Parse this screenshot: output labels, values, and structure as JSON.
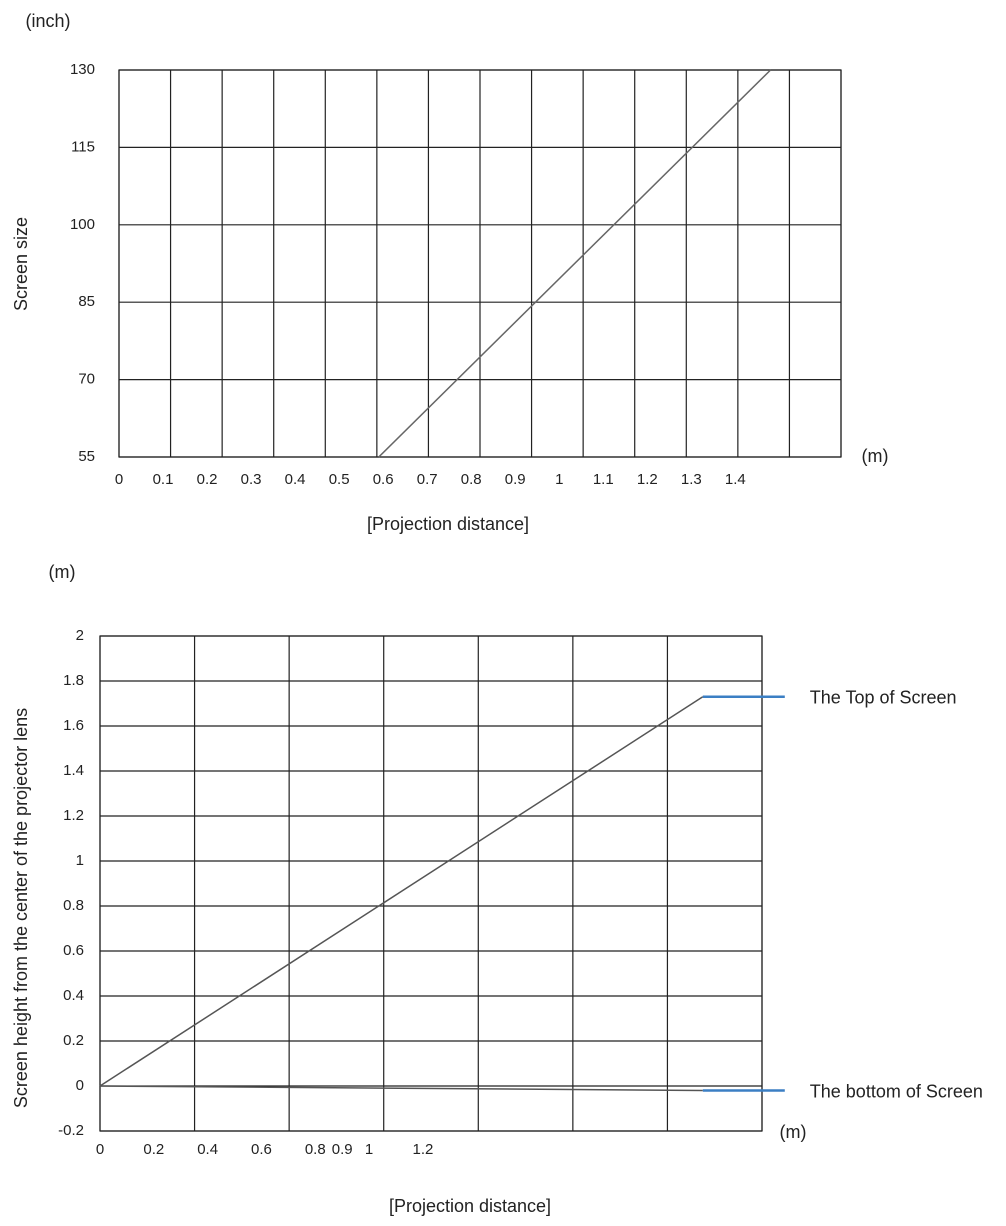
{
  "chart_data": [
    {
      "type": "line",
      "y_unit": "(inch)",
      "y_label": "Screen size",
      "x_unit": "(m)",
      "x_label": "[Projection distance]",
      "x": [
        0.59,
        1.48
      ],
      "values": [
        55,
        130
      ],
      "color": "#666666",
      "xlim": [
        0,
        1.64
      ],
      "xticks": [
        0,
        0.1,
        0.2,
        0.3,
        0.4,
        0.5,
        0.6,
        0.7,
        0.8,
        0.9,
        1,
        1.1,
        1.2,
        1.3,
        1.4
      ],
      "ylim": [
        55,
        130
      ],
      "yticks": [
        55,
        70,
        85,
        100,
        115,
        130
      ],
      "grid": true
    },
    {
      "type": "line",
      "y_unit": "(m)",
      "y_label": "Screen height from the center of the projector lens",
      "x_unit": "(m)",
      "x_label": "[Projection distance]",
      "x": [
        0,
        2.24
      ],
      "series": [
        {
          "name": "The Top of Screen",
          "color": "#555555",
          "values": [
            0,
            1.73
          ]
        },
        {
          "name": "The bottom of Screen",
          "color": "#555555",
          "values": [
            0,
            -0.02
          ]
        }
      ],
      "xlim": [
        0,
        2.46
      ],
      "xticks": [
        0,
        0.2,
        0.4,
        0.6,
        0.8,
        0.9,
        1,
        1.2
      ],
      "ylim": [
        -0.2,
        2
      ],
      "yticks": [
        -0.2,
        0,
        0.2,
        0.4,
        0.6,
        0.8,
        1,
        1.2,
        1.4,
        1.6,
        1.8,
        2
      ],
      "grid": true
    }
  ]
}
